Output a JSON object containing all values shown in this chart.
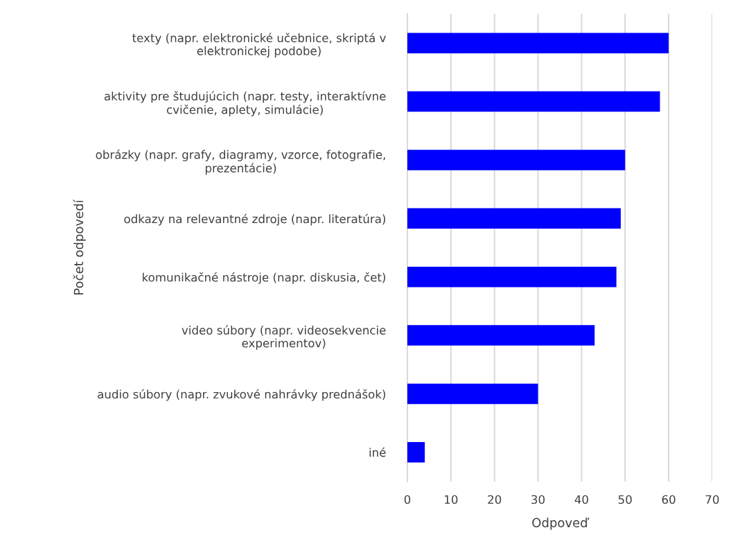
{
  "chart_data": {
    "type": "bar",
    "orientation": "horizontal",
    "xlabel": "Odpoveď",
    "ylabel": "Počet odpovedí",
    "categories": [
      "texty (napr. elektronické učebnice, skriptá v\nelektronickej podobe)",
      "aktivity pre študujúcich (napr. testy, interaktívne\ncvičenie, aplety, simulácie)",
      "obrázky (napr. grafy, diagramy, vzorce, fotografie,\nprezentácie)",
      "odkazy na relevantné zdroje (napr. literatúra)",
      "komunikačné nástroje (napr. diskusia, čet)",
      "video súbory (napr. videosekvencie\nexperimentov)",
      "audio súbory (napr. zvukové nahrávky prednášok)",
      "iné"
    ],
    "values": [
      60,
      58,
      50,
      49,
      48,
      43,
      30,
      4
    ],
    "color": "#0000ff",
    "xlim": [
      0,
      70
    ],
    "xticks": [
      0,
      10,
      20,
      30,
      40,
      50,
      60,
      70
    ],
    "grid": "x"
  }
}
